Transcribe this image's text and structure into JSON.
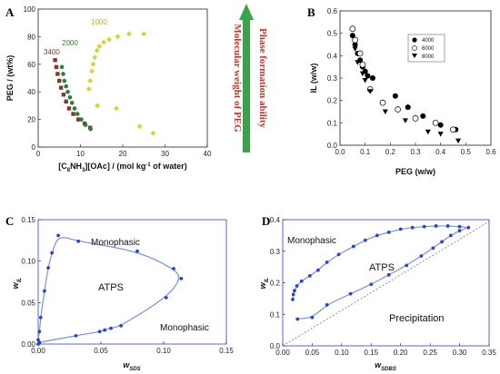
{
  "colors": {
    "series_3400": "#7b3a2a",
    "series_2000": "#2e7d3a",
    "series_1000": "#d6d43a",
    "arrow": "#3aa34a",
    "blue": "#2b45c9",
    "curve": "#7f8fd6",
    "arrow_text": "#c0392b"
  },
  "chart_data": [
    {
      "panel": "A",
      "type": "scatter",
      "xlabel_prefix": "[C",
      "xlabel_sub1": "8",
      "xlabel_mid": "NH",
      "xlabel_sub2": "3",
      "xlabel_suffix": "][OAc]  / (mol kg",
      "xlabel_sup": "-1",
      "xlabel_end": " of water)",
      "ylabel": "PEG / (wt%)",
      "xlim": [
        0,
        40
      ],
      "ylim": [
        0,
        100
      ],
      "xticks": [
        "0",
        "10",
        "20",
        "30",
        "40"
      ],
      "yticks": [
        "0",
        "20",
        "40",
        "60",
        "80",
        "100"
      ],
      "series": [
        {
          "name": "3400",
          "color": "#7b3a2a",
          "marker": "square",
          "x": [
            4.0,
            4.3,
            4.6,
            5.0,
            5.4,
            6.0,
            6.6,
            7.3,
            8.3,
            9.5,
            11.0,
            12.3
          ],
          "y": [
            63,
            58,
            53,
            48,
            43,
            38,
            33,
            28,
            24,
            20,
            17,
            14
          ]
        },
        {
          "name": "2000",
          "color": "#2e7d3a",
          "marker": "circle",
          "x": [
            5.6,
            5.9,
            6.2,
            6.6,
            7.0,
            7.5,
            8.0,
            8.6,
            9.3,
            10.2,
            11.2,
            12.4
          ],
          "y": [
            58,
            53,
            48,
            44,
            40,
            36,
            32,
            28,
            24,
            20,
            16,
            13
          ]
        },
        {
          "name": "1000",
          "color": "#d6d43a",
          "marker": "diamond",
          "x": [
            12.0,
            12.3,
            12.7,
            13.0,
            13.4,
            13.9,
            14.5,
            15.5,
            16.8,
            18.8,
            21.5,
            25.0,
            27.2,
            24.0,
            18.5,
            14.0
          ],
          "y": [
            42,
            48,
            55,
            60,
            65,
            70,
            73,
            76,
            78,
            80,
            82,
            82,
            10,
            15,
            28,
            30
          ]
        }
      ],
      "arrow_labels": [
        "Molecular weight of PEG",
        "Phase formation ability"
      ]
    },
    {
      "panel": "B",
      "type": "scatter",
      "xlabel": "PEG (w/w)",
      "ylabel": "IL (w/w)",
      "xlim": [
        0,
        0.6
      ],
      "ylim": [
        0,
        0.6
      ],
      "xticks": [
        "0.0",
        "0.1",
        "0.2",
        "0.3",
        "0.4",
        "0.5",
        "0.6"
      ],
      "yticks": [
        "0.0",
        "0.1",
        "0.2",
        "0.3",
        "0.4",
        "0.5",
        "0.6"
      ],
      "legend_position": "top-right",
      "series": [
        {
          "name": "4000",
          "marker": "filled-circle",
          "x": [
            0.05,
            0.06,
            0.07,
            0.08,
            0.09,
            0.1,
            0.11,
            0.13,
            0.22,
            0.27,
            0.33,
            0.4,
            0.46
          ],
          "y": [
            0.49,
            0.45,
            0.41,
            0.38,
            0.35,
            0.33,
            0.31,
            0.3,
            0.22,
            0.17,
            0.13,
            0.09,
            0.07
          ]
        },
        {
          "name": "6000",
          "marker": "open-circle",
          "x": [
            0.05,
            0.06,
            0.08,
            0.09,
            0.12,
            0.17,
            0.23,
            0.3,
            0.38,
            0.45
          ],
          "y": [
            0.52,
            0.47,
            0.41,
            0.36,
            0.25,
            0.19,
            0.16,
            0.12,
            0.1,
            0.07
          ]
        },
        {
          "name": "8000",
          "marker": "filled-triangle",
          "x": [
            0.06,
            0.07,
            0.09,
            0.1,
            0.12,
            0.18,
            0.26,
            0.35,
            0.4,
            0.47
          ],
          "y": [
            0.43,
            0.37,
            0.32,
            0.29,
            0.24,
            0.15,
            0.11,
            0.06,
            0.05,
            0.02
          ]
        }
      ]
    },
    {
      "panel": "C",
      "type": "line",
      "xlabel_main": "w",
      "xlabel_sub": "SDS",
      "ylabel_main": "w",
      "ylabel_sub": "IL",
      "xlim": [
        0,
        0.15
      ],
      "ylim": [
        0,
        0.15
      ],
      "xticks": [
        "0.00",
        "0.05",
        "0.10",
        "0.15"
      ],
      "yticks": [
        "0.00",
        "0.05",
        "0.10",
        "0.15"
      ],
      "regions": [
        "Monophasic",
        "ATPS",
        "Monophasic"
      ],
      "points": {
        "x": [
          0.0,
          0.001,
          0.002,
          0.005,
          0.008,
          0.011,
          0.016,
          0.032,
          0.079,
          0.108,
          0.114,
          0.102,
          0.066,
          0.058,
          0.053,
          0.049,
          0.03,
          0.001,
          0.0
        ],
        "y": [
          0.005,
          0.015,
          0.032,
          0.064,
          0.092,
          0.11,
          0.131,
          0.124,
          0.112,
          0.091,
          0.079,
          0.056,
          0.022,
          0.019,
          0.017,
          0.015,
          0.01,
          0.002,
          0.0
        ]
      }
    },
    {
      "panel": "D",
      "type": "line",
      "xlabel_main": "w",
      "xlabel_sub": "SDBS",
      "ylabel_main": "w",
      "ylabel_sub": "IL",
      "xlim": [
        0,
        0.35
      ],
      "ylim": [
        0,
        0.4
      ],
      "xticks": [
        "0.00",
        "0.05",
        "0.10",
        "0.15",
        "0.20",
        "0.25",
        "0.30",
        "0.35"
      ],
      "yticks": [
        "0.0",
        "0.1",
        "0.2",
        "0.3",
        "0.4"
      ],
      "regions": [
        "Monophasic",
        "ATPS",
        "Precipitation"
      ],
      "points": {
        "x": [
          0.017,
          0.018,
          0.02,
          0.024,
          0.032,
          0.046,
          0.06,
          0.075,
          0.095,
          0.12,
          0.14,
          0.16,
          0.18,
          0.2,
          0.22,
          0.24,
          0.26,
          0.28,
          0.3,
          0.315,
          0.3,
          0.285,
          0.27,
          0.255,
          0.235,
          0.21,
          0.18,
          0.15,
          0.115,
          0.075,
          0.05,
          0.025
        ],
        "y": [
          0.147,
          0.163,
          0.175,
          0.19,
          0.205,
          0.222,
          0.24,
          0.265,
          0.29,
          0.315,
          0.335,
          0.35,
          0.36,
          0.37,
          0.375,
          0.378,
          0.38,
          0.38,
          0.378,
          0.375,
          0.365,
          0.35,
          0.33,
          0.31,
          0.285,
          0.255,
          0.225,
          0.195,
          0.165,
          0.13,
          0.09,
          0.085
        ]
      }
    }
  ]
}
